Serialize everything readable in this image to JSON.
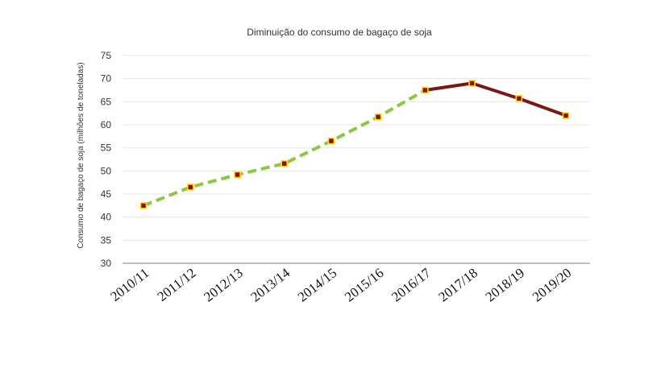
{
  "chart_data": {
    "type": "line",
    "title": "Diminuição do consumo de bagaço de soja",
    "xlabel": "",
    "ylabel": "Consumo de bagaço de soja (milhões de toneladas)",
    "categories": [
      "2010/11",
      "2011/12",
      "2012/13",
      "2013/14",
      "2014/15",
      "2015/16",
      "2016/17",
      "2017/18",
      "2018/19",
      "2019/20"
    ],
    "values": [
      42.5,
      46.5,
      49.2,
      51.6,
      56.5,
      61.7,
      67.5,
      69.0,
      65.7,
      62.0
    ],
    "ylim": [
      30,
      75
    ],
    "yticks": [
      30,
      35,
      40,
      45,
      50,
      55,
      60,
      65,
      70,
      75
    ],
    "grid": true,
    "segments": [
      {
        "from": 0,
        "to": 6,
        "color": "#8dc63f",
        "style": "dashed"
      },
      {
        "from": 6,
        "to": 9,
        "color": "#7a1712",
        "style": "solid"
      }
    ],
    "marker": {
      "fill": "#a00000",
      "stroke": "#f5e400"
    }
  }
}
